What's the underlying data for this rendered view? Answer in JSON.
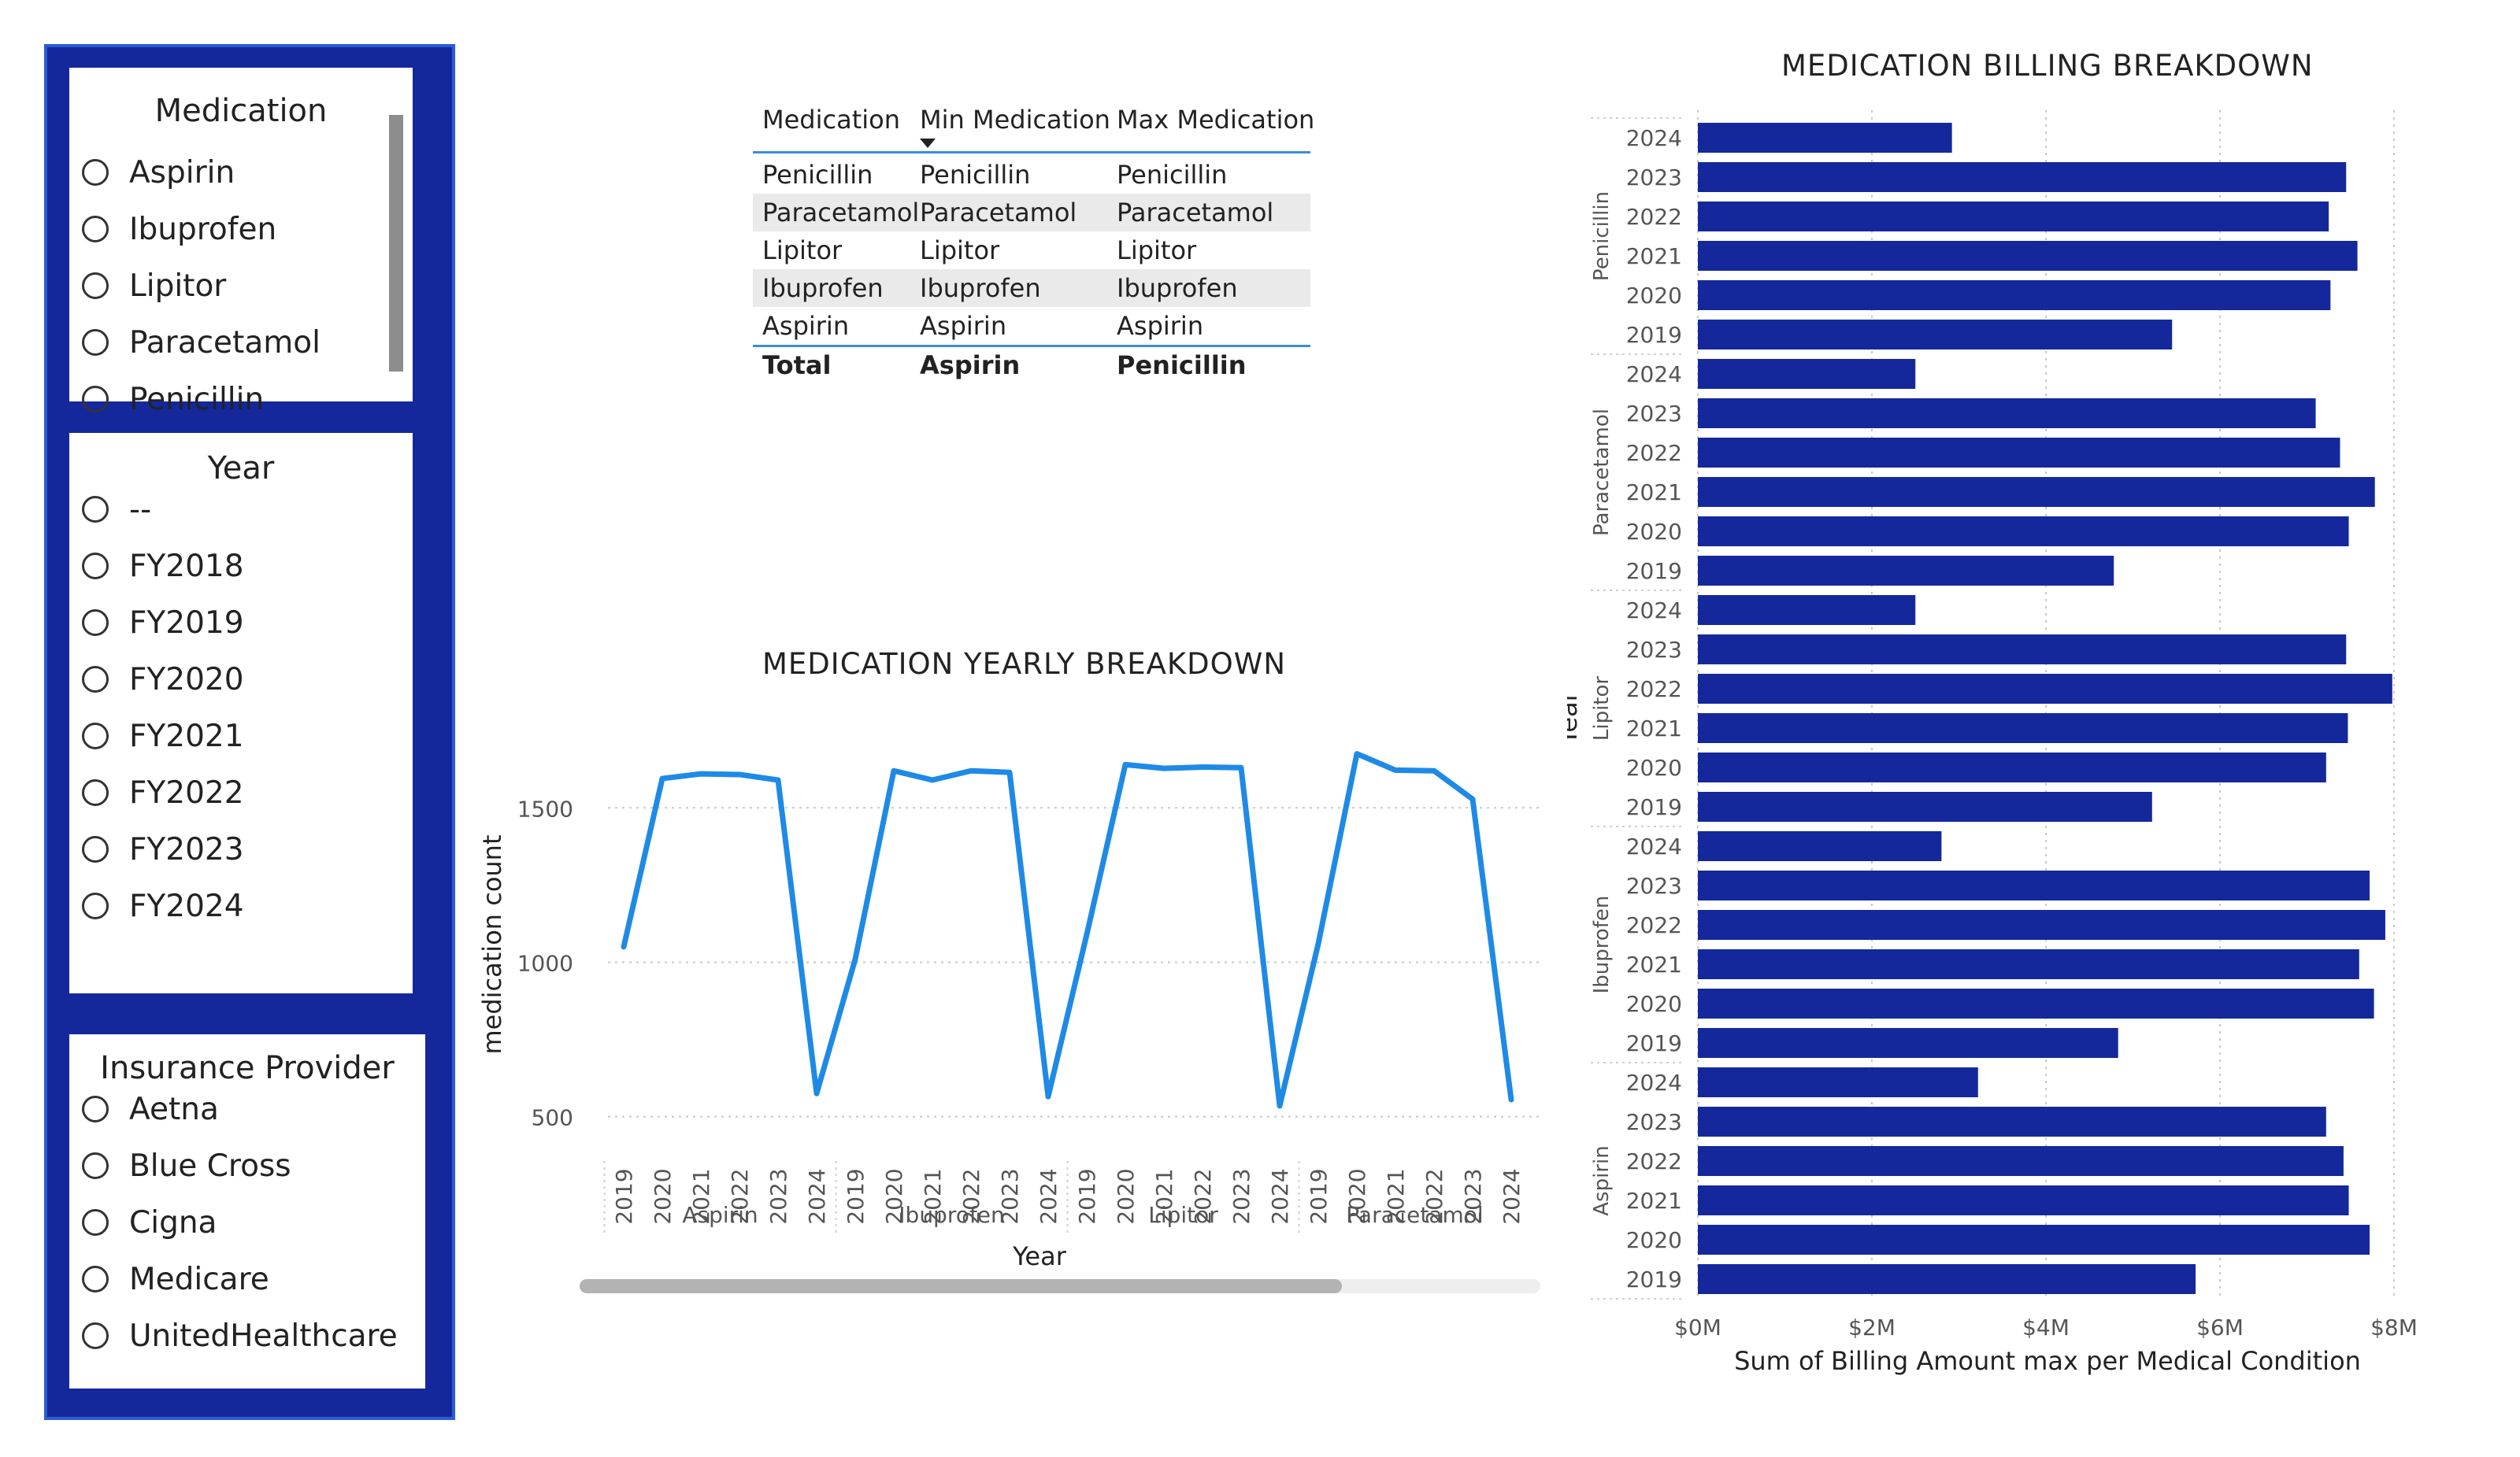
{
  "slicers": {
    "medication": {
      "title": "Medication",
      "options": [
        "Aspirin",
        "Ibuprofen",
        "Lipitor",
        "Paracetamol",
        "Penicillin"
      ]
    },
    "year": {
      "title": "Year",
      "options": [
        "--",
        "FY2018",
        "FY2019",
        "FY2020",
        "FY2021",
        "FY2022",
        "FY2023",
        "FY2024"
      ]
    },
    "insurance": {
      "title": "Insurance Provider",
      "options": [
        "Aetna",
        "Blue Cross",
        "Cigna",
        "Medicare",
        "UnitedHealthcare"
      ]
    }
  },
  "table": {
    "headers": [
      "Medication",
      "Min Medication",
      "Max Medication"
    ],
    "sort_icon": "sort-desc-icon",
    "rows": [
      [
        "Penicillin",
        "Penicillin",
        "Penicillin"
      ],
      [
        "Paracetamol",
        "Paracetamol",
        "Paracetamol"
      ],
      [
        "Lipitor",
        "Lipitor",
        "Lipitor"
      ],
      [
        "Ibuprofen",
        "Ibuprofen",
        "Ibuprofen"
      ],
      [
        "Aspirin",
        "Aspirin",
        "Aspirin"
      ]
    ],
    "total": [
      "Total",
      "Aspirin",
      "Penicillin"
    ]
  },
  "chart_data": [
    {
      "type": "line",
      "title": "MEDICATION YEARLY BREAKDOWN",
      "xlabel": "Year",
      "ylabel": "medication count",
      "groups": [
        "Aspirin",
        "Ibuprofen",
        "Lipitor",
        "Paracetamol"
      ],
      "years": [
        "2019",
        "2020",
        "2021",
        "2022",
        "2023",
        "2024"
      ],
      "yticks": [
        500,
        1000,
        1500
      ],
      "ylim": [
        420,
        1720
      ],
      "color": "#1e8ae6",
      "values": [
        1050,
        1595,
        1610,
        1608,
        1590,
        575,
        1010,
        1620,
        1590,
        1620,
        1615,
        565,
        1090,
        1640,
        1628,
        1632,
        1630,
        535,
        1060,
        1675,
        1622,
        1620,
        1528,
        555
      ],
      "grid": true,
      "partial_last_group": true
    },
    {
      "type": "bar",
      "orientation": "horizontal",
      "title": "MEDICATION BILLING BREAKDOWN",
      "xlabel": "Sum of Billing Amount max per Medical Condition",
      "ylabel": "Year",
      "xticks": [
        "$0M",
        "$2M",
        "$4M",
        "$6M",
        "$8M"
      ],
      "xlim": [
        0,
        8
      ],
      "unit": "$M",
      "color": "#14289c",
      "groups": [
        {
          "name": "Penicillin",
          "years": [
            "2024",
            "2023",
            "2022",
            "2021",
            "2020",
            "2019"
          ],
          "values": [
            2.92,
            7.45,
            7.25,
            7.58,
            7.27,
            5.45
          ]
        },
        {
          "name": "Paracetamol",
          "years": [
            "2024",
            "2023",
            "2022",
            "2021",
            "2020",
            "2019"
          ],
          "values": [
            2.5,
            7.1,
            7.38,
            7.78,
            7.48,
            4.78
          ]
        },
        {
          "name": "Lipitor",
          "years": [
            "2024",
            "2023",
            "2022",
            "2021",
            "2020",
            "2019"
          ],
          "values": [
            2.5,
            7.45,
            7.98,
            7.47,
            7.22,
            5.22
          ]
        },
        {
          "name": "Ibuprofen",
          "years": [
            "2024",
            "2023",
            "2022",
            "2021",
            "2020",
            "2019"
          ],
          "values": [
            2.8,
            7.72,
            7.9,
            7.6,
            7.77,
            4.83
          ]
        },
        {
          "name": "Aspirin",
          "years": [
            "2024",
            "2023",
            "2022",
            "2021",
            "2020",
            "2019"
          ],
          "values": [
            3.22,
            7.22,
            7.42,
            7.48,
            7.72,
            5.72
          ]
        }
      ],
      "grid": true
    }
  ]
}
